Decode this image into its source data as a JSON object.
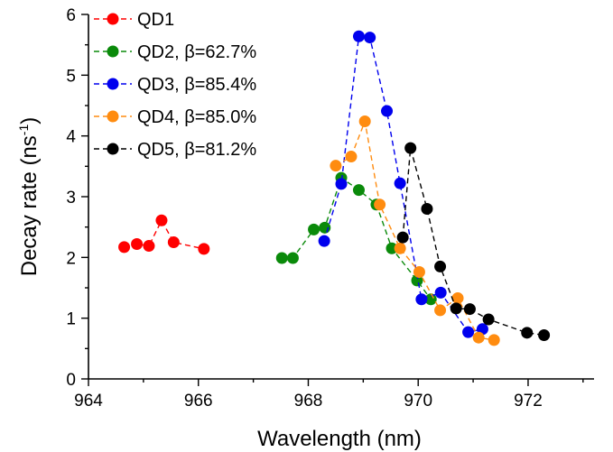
{
  "chart_data": {
    "type": "scatter",
    "xlabel": "Wavelength (nm)",
    "ylabel_main": "Decay rate (ns",
    "ylabel_sup": "-1",
    "ylabel_close": ")",
    "xlim": [
      964,
      973.2
    ],
    "ylim": [
      0,
      6
    ],
    "xticks": [
      964,
      966,
      968,
      970,
      972
    ],
    "yticks": [
      0,
      1,
      2,
      3,
      4,
      5,
      6
    ],
    "legend_position": "top-left",
    "grid": false,
    "series": [
      {
        "name": "QD1",
        "color": "#ff0000",
        "x": [
          964.65,
          964.88,
          965.1,
          965.33,
          965.55,
          966.1
        ],
        "y": [
          2.17,
          2.22,
          2.19,
          2.61,
          2.25,
          2.14
        ]
      },
      {
        "name": "QD2, β=62.7%",
        "color": "#0a8a0a",
        "x": [
          967.52,
          967.72,
          968.1,
          968.3,
          968.6,
          968.92,
          969.24,
          969.52,
          969.98,
          970.23
        ],
        "y": [
          1.99,
          1.99,
          2.46,
          2.49,
          3.31,
          3.11,
          2.87,
          2.15,
          1.62,
          1.31
        ]
      },
      {
        "name": "QD3, β=85.4%",
        "color": "#0000ee",
        "x": [
          968.29,
          968.6,
          968.92,
          969.12,
          969.43,
          969.67,
          970.06,
          970.41,
          970.91,
          971.17
        ],
        "y": [
          2.27,
          3.21,
          5.64,
          5.62,
          4.41,
          3.22,
          1.31,
          1.42,
          0.77,
          0.82
        ]
      },
      {
        "name": "QD4, β=85.0%",
        "color": "#ff8c10",
        "x": [
          968.5,
          968.78,
          969.03,
          969.3,
          969.67,
          970.02,
          970.4,
          970.72,
          971.1,
          971.38
        ],
        "y": [
          3.51,
          3.66,
          4.24,
          2.87,
          2.15,
          1.76,
          1.13,
          1.33,
          0.68,
          0.64
        ]
      },
      {
        "name": "QD5, β=81.2%",
        "color": "#000000",
        "x": [
          969.72,
          969.86,
          970.16,
          970.4,
          970.69,
          970.94,
          971.28,
          971.98,
          972.29
        ],
        "y": [
          2.33,
          3.8,
          2.8,
          1.85,
          1.16,
          1.15,
          0.98,
          0.76,
          0.72
        ]
      }
    ]
  }
}
